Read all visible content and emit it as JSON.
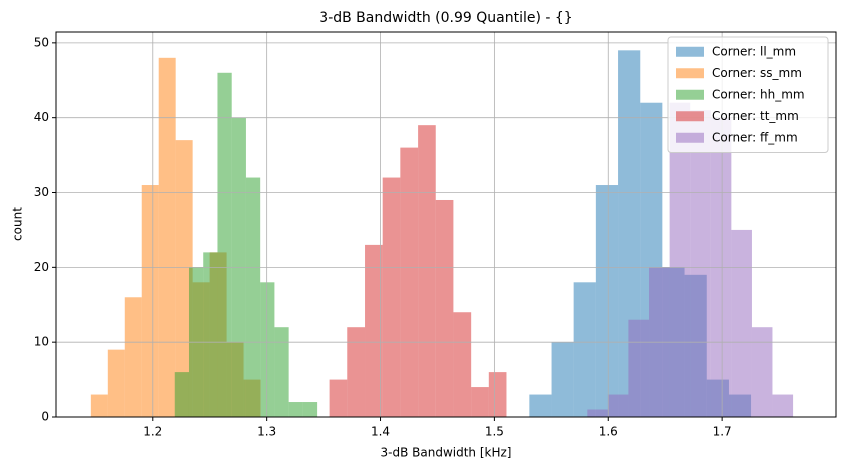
{
  "chart_data": {
    "type": "histogram",
    "title": "3-dB Bandwidth (0.99 Quantile) - {}",
    "xlabel": "3-dB Bandwidth [kHz]",
    "ylabel": "count",
    "alpha": 0.5,
    "grid": true,
    "legend": "upper right",
    "xlim": [
      1.115,
      1.8
    ],
    "ylim": [
      0,
      51.45
    ],
    "xticks": [
      1.2,
      1.3,
      1.4,
      1.5,
      1.6,
      1.7
    ],
    "yticks": [
      0,
      10,
      20,
      30,
      40,
      50
    ],
    "series": [
      {
        "name": "Corner: ll_mm",
        "color": "#1f77b4",
        "bins": [
          1.5307,
          1.5502,
          1.5696,
          1.5891,
          1.6086,
          1.6281,
          1.6475,
          1.667,
          1.6865,
          1.706,
          1.7254
        ],
        "values": [
          3,
          10,
          18,
          31,
          49,
          42,
          20,
          19,
          5,
          3
        ]
      },
      {
        "name": "Corner: ss_mm",
        "color": "#ff7f0e",
        "bins": [
          1.1456,
          1.1605,
          1.1754,
          1.1903,
          1.2052,
          1.2201,
          1.235,
          1.2499,
          1.2648,
          1.2797,
          1.2946
        ],
        "values": [
          3,
          9,
          16,
          31,
          48,
          37,
          18,
          22,
          10,
          5
        ]
      },
      {
        "name": "Corner: hh_mm",
        "color": "#2ca02c",
        "bins": [
          1.2193,
          1.2318,
          1.2443,
          1.2568,
          1.2693,
          1.2818,
          1.2943,
          1.3068,
          1.3193,
          1.3318,
          1.3443
        ],
        "values": [
          6,
          20,
          22,
          46,
          40,
          32,
          18,
          12,
          2,
          2
        ]
      },
      {
        "name": "Corner: tt_mm",
        "color": "#d62728",
        "bins": [
          1.3553,
          1.3708,
          1.3864,
          1.4019,
          1.4174,
          1.433,
          1.4485,
          1.464,
          1.4796,
          1.4951,
          1.5106
        ],
        "values": [
          5,
          12,
          23,
          32,
          36,
          39,
          29,
          14,
          4,
          6
        ]
      },
      {
        "name": "Corner: ff_mm",
        "color": "#9467bd",
        "bins": [
          1.5816,
          1.5997,
          1.6177,
          1.6358,
          1.6539,
          1.672,
          1.69,
          1.7081,
          1.7262,
          1.7442,
          1.7623
        ],
        "values": [
          1,
          3,
          13,
          20,
          42,
          41,
          40,
          25,
          12,
          3
        ]
      }
    ]
  }
}
